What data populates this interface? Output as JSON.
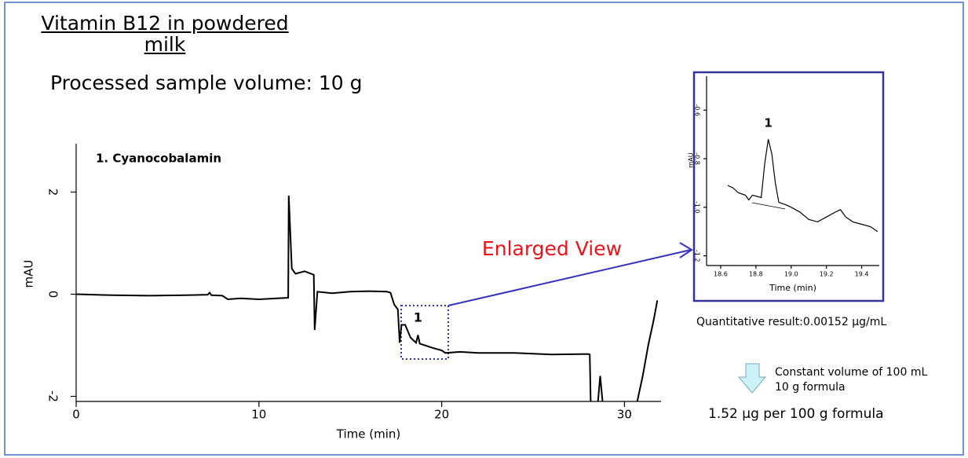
{
  "title": "Vitamin B12 in powdered milk",
  "subtitle": "Processed sample volume: 10 g",
  "callout": "Enlarged View",
  "result": "Quantitative result:0.00152 µg/mL",
  "calculation": {
    "lines": [
      "Constant volume of 100 mL",
      "10 g formula"
    ],
    "result": "1.52 µg per 100 g formula"
  },
  "chart_data": [
    {
      "type": "line",
      "xlabel": "Time (min)",
      "ylabel": "mAU",
      "annotation": "1. Cyanocobalamin",
      "peak_label": "1",
      "peak_x": 18.7,
      "xlim": [
        0,
        32
      ],
      "ylim": [
        -2.1,
        2.9
      ],
      "xticks": [
        0,
        10,
        20,
        30
      ],
      "yticks": [
        -2,
        0,
        2
      ],
      "color": "#000000",
      "x": [
        0,
        2,
        4,
        6,
        7.2,
        7.3,
        7.4,
        8,
        8.3,
        9,
        10,
        11,
        11.6,
        11.63,
        11.8,
        12,
        12.5,
        13,
        13.05,
        13.2,
        14,
        15,
        16,
        17,
        17.2,
        17.4,
        17.6,
        17.7,
        17.8,
        18,
        18.3,
        18.6,
        18.7,
        18.8,
        19.5,
        20,
        20.2,
        21,
        22,
        24,
        26,
        28,
        28.1,
        28.15,
        28.4,
        28.55,
        28.67,
        28.8,
        29,
        30.7,
        31.0,
        31.3,
        31.6,
        31.8
      ],
      "values": [
        0,
        -0.02,
        -0.03,
        -0.02,
        -0.01,
        0.03,
        -0.02,
        -0.03,
        -0.1,
        -0.08,
        -0.1,
        -0.08,
        -0.07,
        1.93,
        0.5,
        0.4,
        0.45,
        0.38,
        -0.7,
        0.05,
        0.02,
        0.05,
        0.06,
        0.05,
        0.03,
        -0.2,
        -0.3,
        -0.95,
        -0.6,
        -0.6,
        -0.85,
        -0.95,
        -0.8,
        -0.97,
        -1.05,
        -1.1,
        -1.15,
        -1.13,
        -1.15,
        -1.15,
        -1.18,
        -1.17,
        -1.18,
        -2.1,
        null,
        -2.1,
        -1.6,
        -2.1,
        null,
        -2.1,
        -1.6,
        -1.0,
        -0.5,
        -0.12
      ]
    },
    {
      "type": "line",
      "xlabel": "Time (min)",
      "ylabel": "mAU",
      "peak_label": "1",
      "peak_x": 18.87,
      "xlim": [
        18.52,
        19.5
      ],
      "ylim": [
        -1.24,
        -0.47
      ],
      "xticks": [
        {
          "value": 18.6,
          "label": "18.6"
        },
        {
          "value": 18.8,
          "label": "18.8"
        },
        {
          "value": 19.0,
          "label": "19.0"
        },
        {
          "value": 19.2,
          "label": "19.2"
        },
        {
          "value": 19.4,
          "label": "19.4"
        }
      ],
      "yticks": [
        {
          "value": -1.2,
          "label": "-1.2"
        },
        {
          "value": -1.0,
          "label": "-1.0"
        },
        {
          "value": -0.8,
          "label": "-0.8"
        },
        {
          "value": -0.6,
          "label": "-0.6"
        }
      ],
      "color": "#000000",
      "x": [
        18.64,
        18.67,
        18.7,
        18.74,
        18.76,
        18.78,
        18.83,
        18.85,
        18.87,
        18.89,
        18.91,
        18.93,
        18.97,
        19.0,
        19.05,
        19.1,
        19.15,
        19.2,
        19.25,
        19.28,
        19.31,
        19.35,
        19.4,
        19.45,
        19.49
      ],
      "values": [
        -0.91,
        -0.92,
        -0.94,
        -0.95,
        -0.97,
        -0.95,
        -0.96,
        -0.82,
        -0.72,
        -0.78,
        -0.9,
        -0.98,
        -0.99,
        -1.0,
        -1.02,
        -1.05,
        -1.06,
        -1.04,
        -1.02,
        -1.01,
        -1.04,
        -1.06,
        -1.07,
        -1.08,
        -1.1
      ]
    }
  ]
}
